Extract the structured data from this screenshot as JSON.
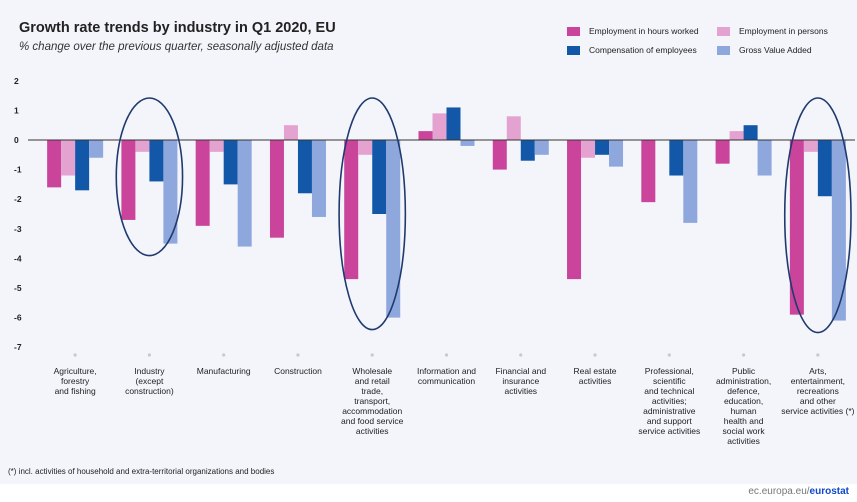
{
  "chart_data": {
    "type": "bar",
    "title": "Growth rate trends by industry in Q1 2020, EU",
    "subtitle": "% change over the previous quarter, seasonally adjusted data",
    "ylim": [
      -7,
      2
    ],
    "yticks": [
      "2",
      "1",
      "0",
      "-1",
      "-2",
      "-3",
      "-4",
      "-5",
      "-6",
      "-7"
    ],
    "categories": [
      "Agriculture,\nforestry\nand fishing",
      "Industry\n(except\nconstruction)",
      "Manufacturing",
      "Construction",
      "Wholesale\nand retail\ntrade,\ntransport,\naccommodation\nand food service\nactivities",
      "Information and\ncommunication",
      "Financial and\ninsurance\nactivities",
      "Real estate\nactivities",
      "Professional,\nscientific\nand technical\nactivities;\nadministrative\nand support\nservice activities",
      "Public\nadministration,\ndefence,\neducation,\nhuman\nhealth and\nsocial work\nactivities",
      "Arts,\nentertainment,\nrecreations\nand other\nservice activities (*)"
    ],
    "series": [
      {
        "name": "Employment in hours worked",
        "color": "#c9449a",
        "values": [
          -1.6,
          -2.7,
          -2.9,
          -3.3,
          -4.7,
          0.3,
          -1.0,
          -4.7,
          -2.1,
          -0.8,
          -5.9
        ]
      },
      {
        "name": "Employment in persons",
        "color": "#e3a2cf",
        "values": [
          -1.2,
          -0.4,
          -0.4,
          0.5,
          -0.5,
          0.9,
          0.8,
          -0.6,
          0.0,
          0.3,
          -0.4
        ]
      },
      {
        "name": "Compensation of employees",
        "color": "#1358a8",
        "values": [
          -1.7,
          -1.4,
          -1.5,
          -1.8,
          -2.5,
          1.1,
          -0.7,
          -0.5,
          -1.2,
          0.5,
          -1.9
        ]
      },
      {
        "name": "Gross Value Added",
        "color": "#8ea7dd",
        "values": [
          -0.6,
          -3.5,
          -3.6,
          -2.6,
          -6.0,
          -0.2,
          -0.5,
          -0.9,
          -2.8,
          -1.2,
          -6.1
        ]
      }
    ],
    "legend": "top-right",
    "grid": false,
    "highlighted_categories": [
      "Industry\n(except\nconstruction)",
      "Wholesale\nand retail\ntrade,\ntransport,\naccommodation\nand food service\nactivities",
      "Arts,\nentertainment,\nrecreations\nand other\nservice activities (*)"
    ],
    "highlight_color": "#1f3a6e"
  },
  "footnote": "(*) incl. activities of household and extra-territorial organizations and bodies",
  "source": {
    "prefix": "ec.europa.eu/",
    "brand": "eurostat"
  }
}
